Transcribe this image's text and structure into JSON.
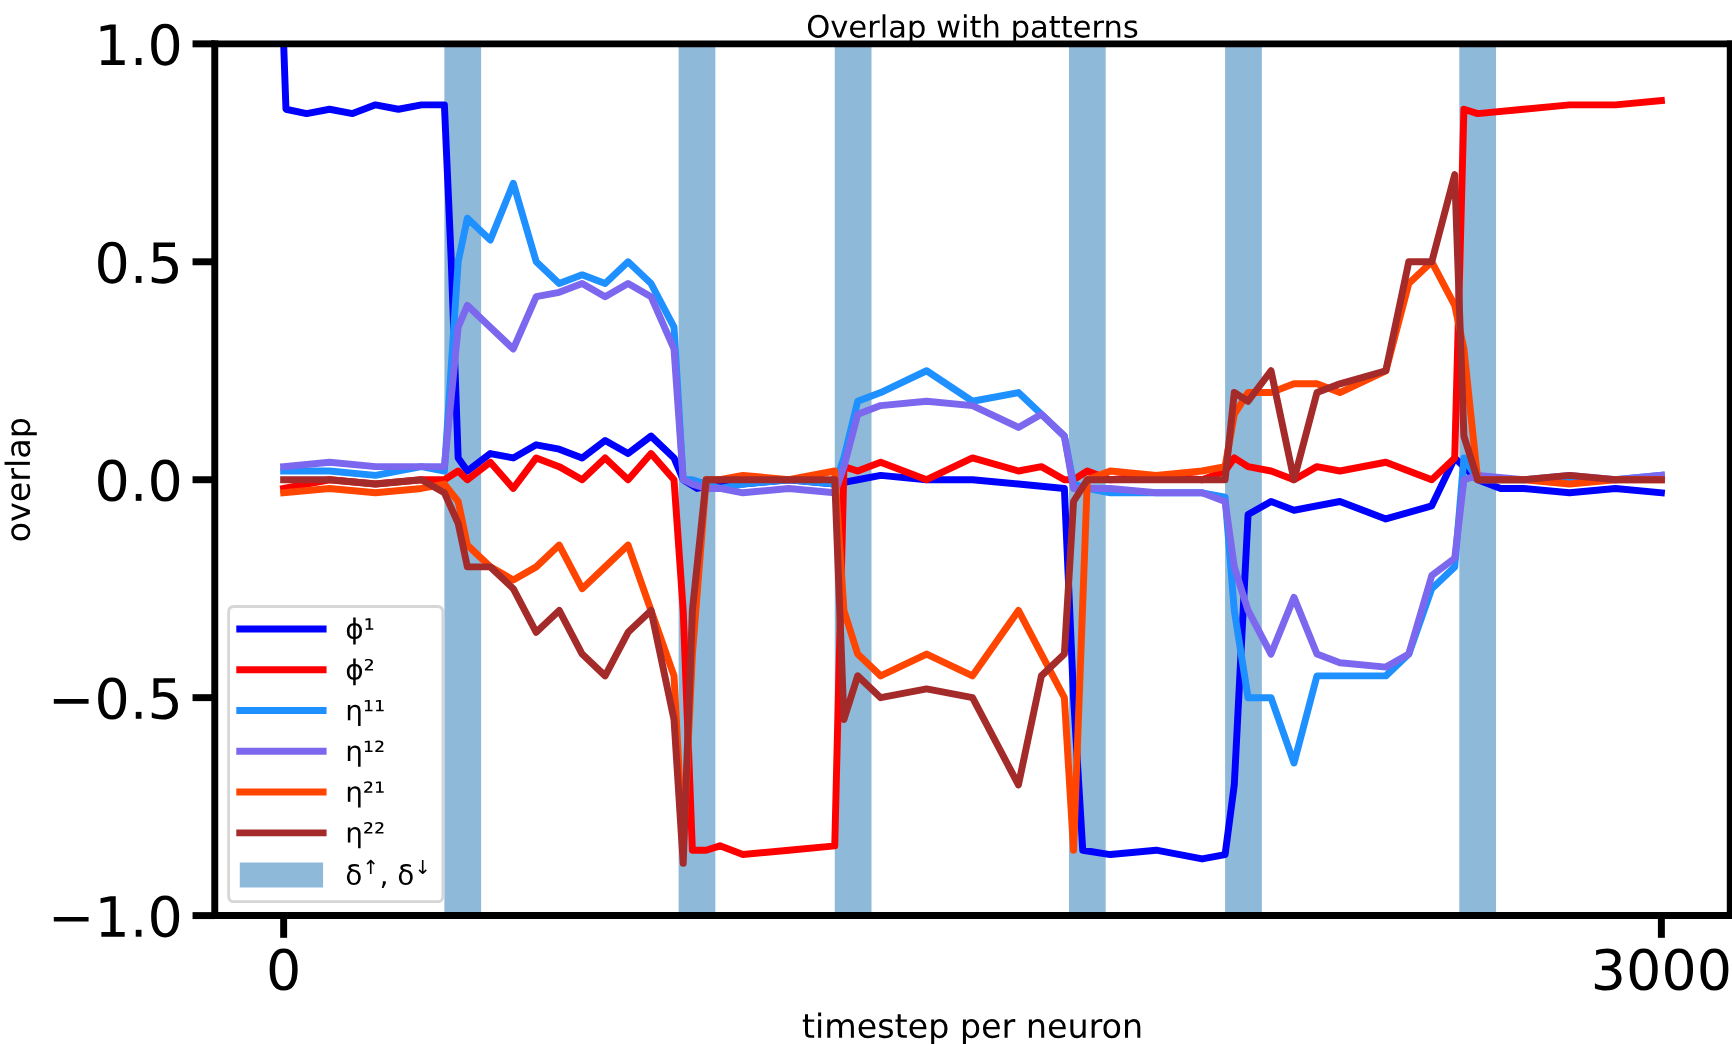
{
  "chart_data": {
    "type": "line",
    "title": "Overlap with patterns",
    "xlabel": "timestep per neuron",
    "ylabel": "overlap",
    "x": [
      0,
      100,
      200,
      300,
      350,
      380,
      400,
      450,
      500,
      550,
      600,
      650,
      700,
      750,
      800,
      850,
      870,
      890,
      920,
      950,
      1000,
      1100,
      1200,
      1220,
      1250,
      1300,
      1400,
      1500,
      1600,
      1650,
      1700,
      1720,
      1750,
      1800,
      1900,
      2000,
      2050,
      2070,
      2100,
      2150,
      2200,
      2250,
      2300,
      2400,
      2450,
      2500,
      2550,
      2570,
      2600,
      2700,
      2800,
      2900,
      3000
    ],
    "series": [
      {
        "name": "ϕ¹",
        "color": "#0000ff",
        "x": [
          0,
          5,
          50,
          100,
          150,
          200,
          250,
          300,
          350,
          365,
          380,
          400,
          450,
          500,
          550,
          600,
          650,
          700,
          750,
          800,
          850,
          870,
          900,
          950,
          1000,
          1100,
          1200,
          1250,
          1300,
          1400,
          1500,
          1600,
          1700,
          1720,
          1740,
          1800,
          1900,
          2000,
          2050,
          2070,
          2100,
          2150,
          2200,
          2300,
          2400,
          2500,
          2550,
          2600,
          2650,
          2700,
          2800,
          2900,
          3000
        ],
        "values": [
          1.0,
          0.85,
          0.84,
          0.85,
          0.84,
          0.86,
          0.85,
          0.86,
          0.86,
          0.5,
          0.05,
          0.02,
          0.06,
          0.05,
          0.08,
          0.07,
          0.05,
          0.09,
          0.06,
          0.1,
          0.05,
          0.0,
          -0.02,
          -0.01,
          -0.01,
          0.0,
          -0.01,
          0.0,
          0.01,
          0.0,
          0.0,
          -0.01,
          -0.02,
          -0.5,
          -0.85,
          -0.86,
          -0.85,
          -0.87,
          -0.86,
          -0.7,
          -0.08,
          -0.05,
          -0.07,
          -0.05,
          -0.09,
          -0.06,
          0.05,
          0.0,
          -0.02,
          -0.02,
          -0.03,
          -0.02,
          -0.03
        ]
      },
      {
        "name": "ϕ²",
        "color": "#ff0000",
        "values": [
          -0.02,
          0.0,
          -0.01,
          0.0,
          0.0,
          0.02,
          0.0,
          0.04,
          -0.02,
          0.05,
          0.03,
          0.0,
          0.05,
          0.0,
          0.06,
          0.0,
          -0.3,
          -0.85,
          -0.85,
          -0.84,
          -0.86,
          -0.85,
          -0.84,
          0.03,
          0.02,
          0.04,
          0.0,
          0.05,
          0.02,
          0.03,
          0.0,
          0.0,
          0.02,
          0.0,
          0.01,
          0.0,
          0.02,
          0.05,
          0.03,
          0.02,
          0.0,
          0.03,
          0.02,
          0.04,
          0.02,
          0.0,
          0.05,
          0.85,
          0.84,
          0.85,
          0.86,
          0.86,
          0.87
        ]
      },
      {
        "name": "η¹¹",
        "color": "#1e90ff",
        "values": [
          0.02,
          0.02,
          0.01,
          0.03,
          0.02,
          0.5,
          0.6,
          0.55,
          0.68,
          0.5,
          0.45,
          0.47,
          0.45,
          0.5,
          0.45,
          0.35,
          0.0,
          0.0,
          -0.01,
          -0.02,
          -0.01,
          0.0,
          -0.01,
          0.05,
          0.18,
          0.2,
          0.25,
          0.18,
          0.2,
          0.15,
          0.1,
          -0.01,
          -0.02,
          -0.03,
          -0.03,
          -0.03,
          -0.04,
          -0.3,
          -0.5,
          -0.5,
          -0.65,
          -0.45,
          -0.45,
          -0.45,
          -0.4,
          -0.25,
          -0.2,
          0.05,
          0.0,
          0.0,
          0.0,
          0.0,
          0.01
        ]
      },
      {
        "name": "η¹²",
        "color": "#7b68ee",
        "values": [
          0.03,
          0.04,
          0.03,
          0.03,
          0.03,
          0.35,
          0.4,
          0.35,
          0.3,
          0.42,
          0.43,
          0.45,
          0.42,
          0.45,
          0.42,
          0.3,
          0.0,
          -0.01,
          -0.02,
          -0.02,
          -0.03,
          -0.02,
          -0.03,
          0.03,
          0.15,
          0.17,
          0.18,
          0.17,
          0.12,
          0.15,
          0.1,
          -0.02,
          -0.02,
          -0.02,
          -0.03,
          -0.03,
          -0.05,
          -0.2,
          -0.3,
          -0.4,
          -0.27,
          -0.4,
          -0.42,
          -0.43,
          -0.4,
          -0.22,
          -0.18,
          0.0,
          0.01,
          0.0,
          0.01,
          0.0,
          0.01
        ]
      },
      {
        "name": "η²¹",
        "color": "#ff4500",
        "values": [
          -0.03,
          -0.02,
          -0.03,
          -0.02,
          -0.01,
          -0.05,
          -0.15,
          -0.2,
          -0.23,
          -0.2,
          -0.15,
          -0.25,
          -0.2,
          -0.15,
          -0.3,
          -0.45,
          -0.85,
          -0.4,
          0.0,
          0.0,
          0.01,
          0.0,
          0.02,
          -0.3,
          -0.4,
          -0.45,
          -0.4,
          -0.45,
          -0.3,
          -0.4,
          -0.5,
          -0.85,
          0.0,
          0.02,
          0.01,
          0.02,
          0.03,
          0.15,
          0.2,
          0.2,
          0.22,
          0.22,
          0.2,
          0.25,
          0.45,
          0.5,
          0.4,
          0.3,
          0.0,
          0.0,
          -0.01,
          0.0,
          0.0
        ]
      },
      {
        "name": "η²²",
        "color": "#a52a2a",
        "values": [
          0.0,
          0.0,
          -0.01,
          0.0,
          -0.03,
          -0.1,
          -0.2,
          -0.2,
          -0.25,
          -0.35,
          -0.3,
          -0.4,
          -0.45,
          -0.35,
          -0.3,
          -0.55,
          -0.88,
          -0.3,
          0.0,
          0.0,
          0.0,
          0.0,
          0.0,
          -0.55,
          -0.45,
          -0.5,
          -0.48,
          -0.5,
          -0.7,
          -0.45,
          -0.4,
          -0.05,
          0.0,
          0.0,
          0.0,
          0.0,
          0.0,
          0.2,
          0.18,
          0.25,
          0.0,
          0.2,
          0.22,
          0.25,
          0.5,
          0.5,
          0.7,
          0.1,
          0.0,
          0.0,
          0.01,
          0.0,
          0.0
        ]
      }
    ],
    "bands": [
      {
        "axis": "x",
        "from": 350,
        "to": 430,
        "label": "δ$^{↑}$, δ$^{↓}$",
        "color": "#8fb9d9"
      },
      {
        "axis": "x",
        "from": 860,
        "to": 940,
        "color": "#8fb9d9"
      },
      {
        "axis": "x",
        "from": 1200,
        "to": 1280,
        "color": "#8fb9d9"
      },
      {
        "axis": "x",
        "from": 1710,
        "to": 1790,
        "color": "#8fb9d9"
      },
      {
        "axis": "x",
        "from": 2050,
        "to": 2130,
        "color": "#8fb9d9"
      },
      {
        "axis": "x",
        "from": 2560,
        "to": 2640,
        "color": "#8fb9d9"
      }
    ],
    "xlim": [
      -150,
      3150
    ],
    "xticks": [
      0,
      3000
    ],
    "ylim": [
      -1.0,
      1.0
    ],
    "yticks": [
      {
        "value": -1.0,
        "label": "−1.0"
      },
      {
        "value": -0.5,
        "label": "−0.5"
      },
      {
        "value": 0.0,
        "label": "0.0"
      },
      {
        "value": 0.5,
        "label": "0.5"
      },
      {
        "value": 1.0,
        "label": "1.0"
      }
    ],
    "legend": "bottom left",
    "grid": false,
    "marker": "none",
    "line_style": "solid"
  }
}
